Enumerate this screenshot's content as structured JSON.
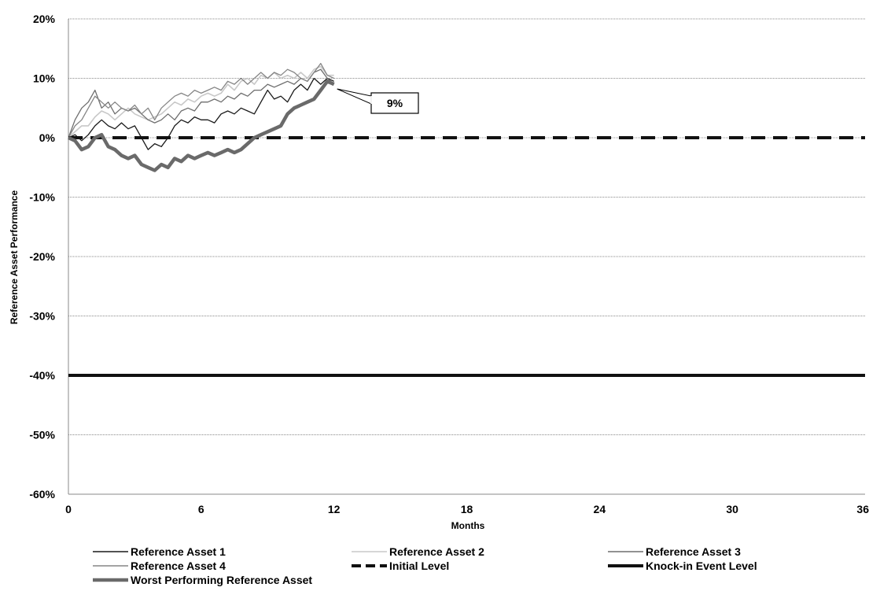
{
  "chart_data": {
    "type": "line",
    "xlabel": "Months",
    "ylabel": "Reference Asset Performance",
    "xlim": [
      0,
      36
    ],
    "ylim": [
      -60,
      20
    ],
    "xticks": [
      0,
      6,
      12,
      18,
      24,
      30,
      36
    ],
    "yticks": [
      20,
      10,
      0,
      -10,
      -20,
      -30,
      -40,
      -50,
      -60
    ],
    "ytick_format": "%",
    "grid": "horizontal-dotted",
    "legend_position": "bottom",
    "series": [
      {
        "name": "Reference Asset 1",
        "color": "#1a1a1a",
        "width": 1.3,
        "dash": "",
        "x": [
          0,
          0.3,
          0.6,
          0.9,
          1.2,
          1.5,
          1.8,
          2.1,
          2.4,
          2.7,
          3.0,
          3.3,
          3.6,
          3.9,
          4.2,
          4.5,
          4.8,
          5.1,
          5.4,
          5.7,
          6.0,
          6.3,
          6.6,
          6.9,
          7.2,
          7.5,
          7.8,
          8.1,
          8.4,
          8.7,
          9.0,
          9.3,
          9.6,
          9.9,
          10.2,
          10.5,
          10.8,
          11.1,
          11.4,
          11.7,
          12.0
        ],
        "y": [
          0,
          0.5,
          -0.5,
          0.5,
          2,
          3,
          2,
          1.5,
          2.5,
          1.5,
          2,
          0,
          -2,
          -1,
          -1.5,
          0,
          2,
          3,
          2.5,
          3.5,
          3,
          3,
          2.5,
          4,
          4.5,
          4,
          5,
          4.5,
          4,
          6,
          8,
          6.5,
          7,
          6,
          8,
          9,
          8,
          10,
          9,
          10,
          9.5
        ]
      },
      {
        "name": "Reference Asset 2",
        "color": "#c8c8c8",
        "width": 1.6,
        "dash": "",
        "x": [
          0,
          0.3,
          0.6,
          0.9,
          1.2,
          1.5,
          1.8,
          2.1,
          2.4,
          2.7,
          3.0,
          3.3,
          3.6,
          3.9,
          4.2,
          4.5,
          4.8,
          5.1,
          5.4,
          5.7,
          6.0,
          6.3,
          6.6,
          6.9,
          7.2,
          7.5,
          7.8,
          8.1,
          8.4,
          8.7,
          9.0,
          9.3,
          9.6,
          9.9,
          10.2,
          10.5,
          10.8,
          11.1,
          11.4,
          11.7,
          12.0
        ],
        "y": [
          0,
          1,
          2,
          2,
          3.5,
          4.5,
          4,
          3,
          4,
          5,
          4,
          3.5,
          3,
          3.5,
          4,
          5,
          6,
          5.5,
          6.5,
          6,
          7,
          7.5,
          7,
          7.5,
          9,
          8,
          9.5,
          10,
          9,
          10.5,
          10,
          11,
          10,
          10.5,
          10,
          11,
          10,
          11.5,
          12,
          10.5,
          10.5
        ]
      },
      {
        "name": "Reference Asset 3",
        "color": "#6e6e6e",
        "width": 1.3,
        "dash": "",
        "x": [
          0,
          0.3,
          0.6,
          0.9,
          1.2,
          1.5,
          1.8,
          2.1,
          2.4,
          2.7,
          3.0,
          3.3,
          3.6,
          3.9,
          4.2,
          4.5,
          4.8,
          5.1,
          5.4,
          5.7,
          6.0,
          6.3,
          6.6,
          6.9,
          7.2,
          7.5,
          7.8,
          8.1,
          8.4,
          8.7,
          9.0,
          9.3,
          9.6,
          9.9,
          10.2,
          10.5,
          10.8,
          11.1,
          11.4,
          11.7,
          12.0
        ],
        "y": [
          0,
          3,
          5,
          6,
          8,
          5,
          6,
          4,
          5,
          4.5,
          5,
          4,
          3,
          2.5,
          3,
          4,
          3,
          4.5,
          5,
          4.5,
          6,
          6,
          6.5,
          6,
          7,
          6.5,
          7.5,
          7,
          8,
          8,
          9,
          8.5,
          9,
          9.5,
          9,
          10,
          9.5,
          11,
          11.5,
          10,
          9
        ]
      },
      {
        "name": "Reference Asset 4",
        "color": "#858585",
        "width": 1.3,
        "dash": "",
        "x": [
          0,
          0.3,
          0.6,
          0.9,
          1.2,
          1.5,
          1.8,
          2.1,
          2.4,
          2.7,
          3.0,
          3.3,
          3.6,
          3.9,
          4.2,
          4.5,
          4.8,
          5.1,
          5.4,
          5.7,
          6.0,
          6.3,
          6.6,
          6.9,
          7.2,
          7.5,
          7.8,
          8.1,
          8.4,
          8.7,
          9.0,
          9.3,
          9.6,
          9.9,
          10.2,
          10.5,
          10.8,
          11.1,
          11.4,
          11.7,
          12.0
        ],
        "y": [
          0,
          2,
          3,
          5,
          7,
          6,
          5,
          6,
          5,
          4.5,
          5.5,
          4,
          5,
          3,
          5,
          6,
          7,
          7.5,
          7,
          8,
          7.5,
          8,
          8.5,
          8,
          9.5,
          9,
          10,
          9,
          10,
          11,
          10,
          11,
          10.5,
          11.5,
          11,
          10,
          9.5,
          11,
          12.5,
          10.5,
          10
        ]
      },
      {
        "name": "Initial Level",
        "color": "#111111",
        "width": 4,
        "dash": "18,10",
        "x": [
          0,
          36
        ],
        "y": [
          0,
          0
        ]
      },
      {
        "name": "Knock-in Event Level",
        "color": "#111111",
        "width": 4,
        "dash": "",
        "x": [
          0,
          36
        ],
        "y": [
          -40,
          -40
        ]
      },
      {
        "name": "Worst Performing Reference Asset",
        "color": "#6a6a6a",
        "width": 4.5,
        "dash": "",
        "x": [
          0,
          0.3,
          0.6,
          0.9,
          1.2,
          1.5,
          1.8,
          2.1,
          2.4,
          2.7,
          3.0,
          3.3,
          3.6,
          3.9,
          4.2,
          4.5,
          4.8,
          5.1,
          5.4,
          5.7,
          6.0,
          6.3,
          6.6,
          6.9,
          7.2,
          7.5,
          7.8,
          8.1,
          8.4,
          8.7,
          9.0,
          9.3,
          9.6,
          9.9,
          10.2,
          10.5,
          10.8,
          11.1,
          11.4,
          11.7,
          12.0
        ],
        "y": [
          0,
          -0.5,
          -2,
          -1.5,
          0,
          0.5,
          -1.5,
          -2,
          -3,
          -3.5,
          -3,
          -4.5,
          -5,
          -5.5,
          -4.5,
          -5,
          -3.5,
          -4,
          -3,
          -3.5,
          -3,
          -2.5,
          -3,
          -2.5,
          -2,
          -2.5,
          -2,
          -1,
          0,
          0.5,
          1,
          1.5,
          2,
          4,
          5,
          5.5,
          6,
          6.5,
          8,
          9.5,
          9
        ]
      }
    ],
    "annotations": [
      {
        "text": "9%",
        "x": 12,
        "y": 9
      }
    ]
  }
}
